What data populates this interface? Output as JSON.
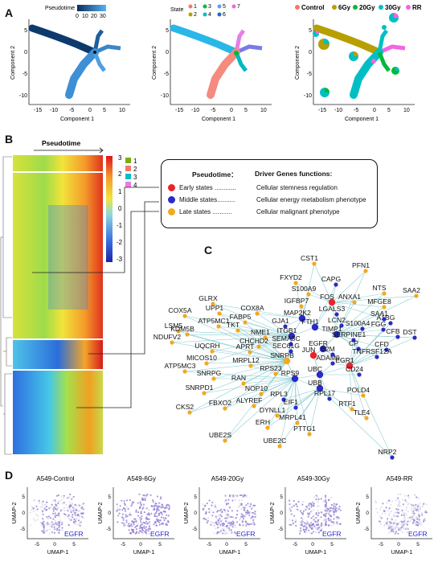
{
  "panels": {
    "a": "A",
    "b": "B",
    "c": "C",
    "d": "D"
  },
  "panel_a": {
    "plot1": {
      "legend_title": "Pseudotime",
      "ticks": [
        "0",
        "10",
        "20",
        "30"
      ]
    },
    "plot2": {
      "legend_title": "State",
      "states": [
        {
          "label": "1",
          "color": "#f8766d"
        },
        {
          "label": "2",
          "color": "#b79f00"
        },
        {
          "label": "3",
          "color": "#00ba38"
        },
        {
          "label": "4",
          "color": "#00bfc4"
        },
        {
          "label": "5",
          "color": "#619cff"
        },
        {
          "label": "6",
          "color": "#1a6dc4"
        },
        {
          "label": "7",
          "color": "#f564e3"
        }
      ]
    },
    "plot3": {
      "groups": [
        {
          "label": "Control",
          "color": "#f8766d"
        },
        {
          "label": "6Gy",
          "color": "#b79f00"
        },
        {
          "label": "20Gy",
          "color": "#00ba38"
        },
        {
          "label": "30Gy",
          "color": "#00bfc4"
        },
        {
          "label": "RR",
          "color": "#f564e3"
        }
      ]
    },
    "xlabel": "Component 1",
    "ylabel": "Component 2",
    "xticks": [
      "-15",
      "-10",
      "-5",
      "0",
      "5",
      "10"
    ],
    "yticks": [
      "5",
      "0",
      "-5",
      "-10"
    ]
  },
  "panel_b": {
    "title": "Pseudotime",
    "color_scale": [
      "3",
      "2",
      "1",
      "0",
      "-1",
      "-2",
      "-3"
    ],
    "clusters": [
      {
        "label": "1",
        "color": "#7cae00"
      },
      {
        "label": "2",
        "color": "#f8766d"
      },
      {
        "label": "3",
        "color": "#00bfc4"
      },
      {
        "label": "4",
        "color": "#e87ce8"
      }
    ],
    "legend_box": {
      "head_left": "Pseudotime：",
      "head_right": "Driver Genes functions:",
      "rows": [
        {
          "label": "Early states ............",
          "desc": "Cellular stemness regulation",
          "color": "#e8242a"
        },
        {
          "label": "Middle states..........",
          "desc": "Cellular energy metabolism phenotype",
          "color": "#2a2ac8"
        },
        {
          "label": "Late states ...........",
          "desc": "Cellular malignant phenotype",
          "color": "#f2a91d"
        }
      ]
    }
  },
  "panel_c": {
    "genes": [
      {
        "name": "CST1",
        "c": "o"
      },
      {
        "name": "PFN1",
        "c": "o"
      },
      {
        "name": "FXYD2",
        "c": "o"
      },
      {
        "name": "CAPG",
        "c": "b"
      },
      {
        "name": "NTS",
        "c": "o"
      },
      {
        "name": "S100A9",
        "c": "o"
      },
      {
        "name": "SAA2",
        "c": "o"
      },
      {
        "name": "FOS",
        "c": "r"
      },
      {
        "name": "IGFBP7",
        "c": "o"
      },
      {
        "name": "ANXA1",
        "c": "o"
      },
      {
        "name": "MFGE8",
        "c": "o"
      },
      {
        "name": "GLRX",
        "c": "o"
      },
      {
        "name": "COX5A",
        "c": "o"
      },
      {
        "name": "COX8A",
        "c": "o"
      },
      {
        "name": "UPP1",
        "c": "o"
      },
      {
        "name": "LGALS3",
        "c": "b"
      },
      {
        "name": "MAP2K2",
        "c": "b"
      },
      {
        "name": "A1BG",
        "c": "b"
      },
      {
        "name": "FABP5",
        "c": "o"
      },
      {
        "name": "LSM5",
        "c": "o"
      },
      {
        "name": "ATP5MC1",
        "c": "o"
      },
      {
        "name": "GJA1",
        "c": "b"
      },
      {
        "name": "FTH1",
        "c": "b"
      },
      {
        "name": "LCN2",
        "c": "b"
      },
      {
        "name": "SAA1",
        "c": "b"
      },
      {
        "name": "KDM5B",
        "c": "o"
      },
      {
        "name": "TKT",
        "c": "o"
      },
      {
        "name": "ITGB1",
        "c": "b"
      },
      {
        "name": "TIMP1",
        "c": "b"
      },
      {
        "name": "S100A4",
        "c": "b"
      },
      {
        "name": "FGG",
        "c": "b"
      },
      {
        "name": "CFB",
        "c": "b"
      },
      {
        "name": "DST",
        "c": "b"
      },
      {
        "name": "NME1",
        "c": "o"
      },
      {
        "name": "SEMA3C",
        "c": "b"
      },
      {
        "name": "SERPINE1",
        "c": "b"
      },
      {
        "name": "NDUFV2",
        "c": "o"
      },
      {
        "name": "CHCHD2",
        "c": "o"
      },
      {
        "name": "APRT",
        "c": "o"
      },
      {
        "name": "SEC61G",
        "c": "b"
      },
      {
        "name": "EGFR",
        "c": "b"
      },
      {
        "name": "CP",
        "c": "b"
      },
      {
        "name": "CFD",
        "c": "b"
      },
      {
        "name": "UQCRH",
        "c": "o"
      },
      {
        "name": "B2M",
        "c": "b"
      },
      {
        "name": "TNFRSF12A",
        "c": "b"
      },
      {
        "name": "JUN",
        "c": "r"
      },
      {
        "name": "ADAM9",
        "c": "b"
      },
      {
        "name": "EGR1",
        "c": "r"
      },
      {
        "name": "MICOS10",
        "c": "o"
      },
      {
        "name": "SNRPB",
        "c": "o"
      },
      {
        "name": "MRPL12",
        "c": "o"
      },
      {
        "name": "ATP5MC3",
        "c": "o"
      },
      {
        "name": "CD24",
        "c": "b"
      },
      {
        "name": "RPS23",
        "c": "o"
      },
      {
        "name": "SNRPG",
        "c": "o"
      },
      {
        "name": "RAN",
        "c": "o"
      },
      {
        "name": "RPS9",
        "c": "b"
      },
      {
        "name": "UBC",
        "c": "b"
      },
      {
        "name": "SNRPD1",
        "c": "o"
      },
      {
        "name": "NOP10",
        "c": "o"
      },
      {
        "name": "RPL3",
        "c": "b"
      },
      {
        "name": "UBB",
        "c": "b"
      },
      {
        "name": "ALYREF",
        "c": "o"
      },
      {
        "name": "EIF1",
        "c": "b"
      },
      {
        "name": "RPL17",
        "c": "b"
      },
      {
        "name": "POLD4",
        "c": "o"
      },
      {
        "name": "FBXO2",
        "c": "o"
      },
      {
        "name": "DYNLL1",
        "c": "o"
      },
      {
        "name": "RTF1",
        "c": "o"
      },
      {
        "name": "CKS2",
        "c": "o"
      },
      {
        "name": "MRPL41",
        "c": "o"
      },
      {
        "name": "TLE4",
        "c": "o"
      },
      {
        "name": "ERH",
        "c": "o"
      },
      {
        "name": "PTTG1",
        "c": "o"
      },
      {
        "name": "UBE2S",
        "c": "o"
      },
      {
        "name": "UBE2C",
        "c": "o"
      },
      {
        "name": "NRP2",
        "c": "b"
      }
    ]
  },
  "panel_d": {
    "samples": [
      {
        "title": "A549-Control"
      },
      {
        "title": "A549-6Gy"
      },
      {
        "title": "A549-20Gy"
      },
      {
        "title": "A549-30Gy"
      },
      {
        "title": "A549-RR"
      }
    ],
    "gene_label": "EGFR",
    "xlabel": "UMAP-1",
    "ylabel": "UMAP-2",
    "xticks": [
      "-5",
      "0",
      "5"
    ],
    "yticks": [
      "5",
      "0",
      "-5"
    ]
  }
}
